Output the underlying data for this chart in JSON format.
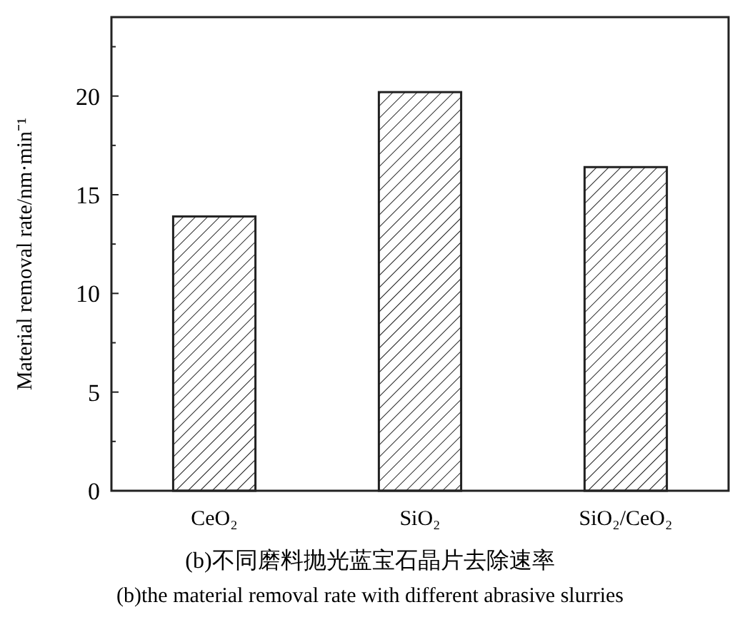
{
  "chart_data": {
    "type": "bar",
    "categories": [
      "CeO₂",
      "SiO₂",
      "SiO₂/CeO₂"
    ],
    "values": [
      13.9,
      20.2,
      16.4
    ],
    "color": "#222222",
    "ylabel": "Material removal rate/nm·min⁻¹",
    "ylim": [
      0,
      24
    ],
    "yticks": [
      0,
      {
        "value": 2.5,
        "label": null
      },
      5,
      {
        "value": 7.5,
        "label": null
      },
      10,
      {
        "value": 12.5,
        "label": null
      },
      15,
      {
        "value": 17.5,
        "label": null
      },
      20,
      {
        "value": 22.5,
        "label": null
      }
    ],
    "grid": false,
    "annotations": [
      "(b)不同磨料抛光蓝宝石晶片去除速率",
      "(b)the material removal rate with different abrasive slurries"
    ]
  }
}
